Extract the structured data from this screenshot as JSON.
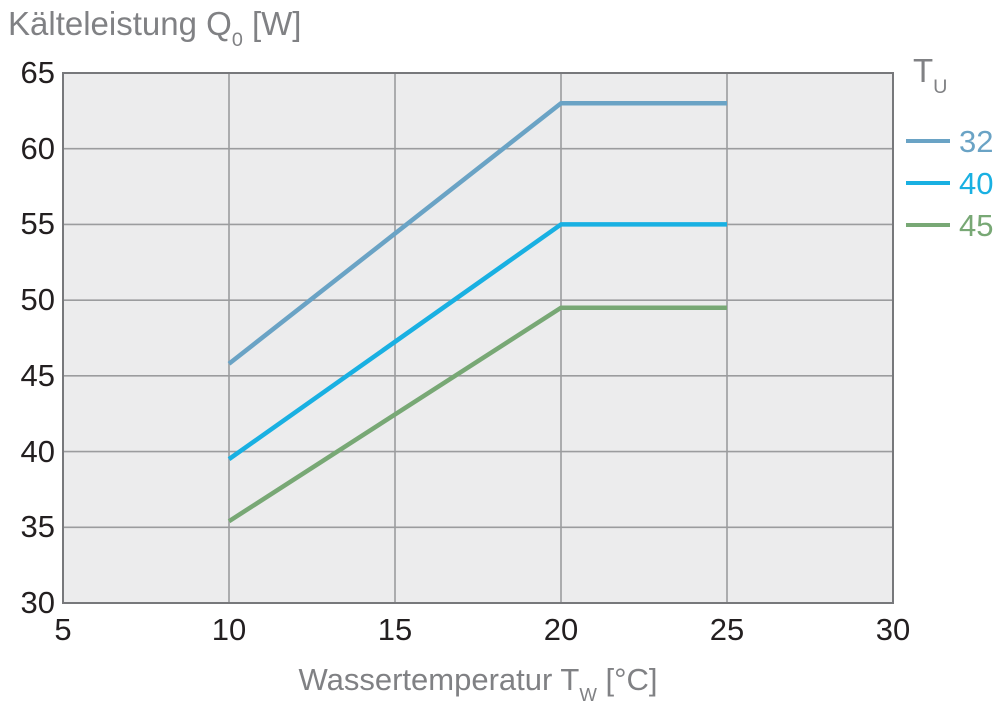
{
  "title": {
    "prefix": "Kälteleistung Q",
    "sub": "0",
    "suffix": " [W]"
  },
  "x_axis_label": {
    "prefix": "Wassertemperatur T",
    "sub": "W",
    "suffix": " [°C]"
  },
  "legend": {
    "title": "T",
    "title_sub": "U"
  },
  "colors": {
    "plot_background": "#ececed",
    "gridline": "#9b9c9e",
    "plot_border": "#77787b",
    "tick_text": "#231f20",
    "label_text": "#808184",
    "series_32": "#6aa3c5",
    "series_40": "#19b0e2",
    "series_45": "#78a875"
  },
  "chart_data": {
    "type": "line",
    "title": "Kälteleistung Q0 [W]",
    "xlabel": "Wassertemperatur TW [°C]",
    "ylabel": "Kälteleistung Q0 [W]",
    "xlim": [
      5,
      30
    ],
    "ylim": [
      30,
      65
    ],
    "x_ticks": [
      5,
      10,
      15,
      20,
      25,
      30
    ],
    "y_ticks": [
      30,
      35,
      40,
      45,
      50,
      55,
      60,
      65
    ],
    "grid": true,
    "legend_position": "right",
    "legend_title": "TU",
    "series": [
      {
        "name": "32",
        "color": "#6aa3c5",
        "points": [
          [
            10,
            45.8
          ],
          [
            20,
            63.0
          ],
          [
            25,
            63.0
          ]
        ]
      },
      {
        "name": "40",
        "color": "#19b0e2",
        "points": [
          [
            10,
            39.5
          ],
          [
            20,
            55.0
          ],
          [
            25,
            55.0
          ]
        ]
      },
      {
        "name": "45",
        "color": "#78a875",
        "points": [
          [
            10,
            35.4
          ],
          [
            20,
            49.5
          ],
          [
            25,
            49.5
          ]
        ]
      }
    ]
  }
}
